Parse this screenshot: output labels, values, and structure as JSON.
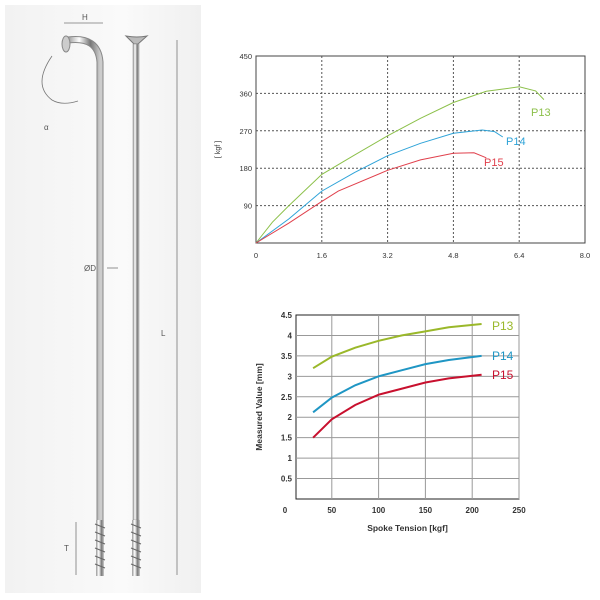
{
  "diagram": {
    "labels": {
      "head": "H",
      "angle": "α",
      "diameter": "ØD",
      "length": "L",
      "thread": "T"
    }
  },
  "chart_data": [
    {
      "type": "line",
      "title": "",
      "xlabel": "",
      "ylabel": "[ kgf ]",
      "xlim": [
        0,
        8
      ],
      "ylim": [
        0,
        450
      ],
      "xticks": [
        "0",
        "1.6",
        "3.2",
        "4.8",
        "6.4",
        "8.0"
      ],
      "yticks": [
        "90",
        "180",
        "270",
        "360",
        "450"
      ],
      "grid": "dashed",
      "series": [
        {
          "name": "P13",
          "color": "#8cc04a",
          "points": [
            [
              0,
              0
            ],
            [
              0.4,
              50
            ],
            [
              0.8,
              90
            ],
            [
              1.6,
              165
            ],
            [
              2.4,
              212
            ],
            [
              3.2,
              258
            ],
            [
              4,
              300
            ],
            [
              4.8,
              338
            ],
            [
              5.6,
              365
            ],
            [
              6.4,
              376
            ],
            [
              6.8,
              366
            ],
            [
              7,
              345
            ]
          ]
        },
        {
          "name": "P14",
          "color": "#2ea3d8",
          "points": [
            [
              0,
              0
            ],
            [
              0.8,
              58
            ],
            [
              1.6,
              125
            ],
            [
              2.4,
              170
            ],
            [
              3.2,
              210
            ],
            [
              4,
              240
            ],
            [
              4.8,
              264
            ],
            [
              5.5,
              272
            ],
            [
              5.8,
              268
            ],
            [
              6,
              255
            ]
          ]
        },
        {
          "name": "P15",
          "color": "#e0404c",
          "points": [
            [
              0,
              0
            ],
            [
              0.8,
              48
            ],
            [
              1.6,
              100
            ],
            [
              2,
              125
            ],
            [
              3.2,
              175
            ],
            [
              4,
              200
            ],
            [
              4.8,
              216
            ],
            [
              5.3,
              217
            ],
            [
              5.6,
              205
            ]
          ]
        }
      ]
    },
    {
      "type": "line",
      "title": "",
      "xlabel": "Spoke Tension [kgf]",
      "ylabel": "Measured Value [mm]",
      "xlim": [
        0,
        250
      ],
      "ylim": [
        0,
        4.5
      ],
      "xticks": [
        "0",
        "50",
        "100",
        "150",
        "200",
        "250"
      ],
      "yticks": [
        "0.5",
        "1",
        "1.5",
        "2",
        "2.5",
        "3",
        "3.5",
        "4",
        "4.5"
      ],
      "grid": "solid",
      "series": [
        {
          "name": "P13",
          "color": "#9ab82a",
          "points": [
            [
              30,
              3.2
            ],
            [
              50,
              3.48
            ],
            [
              75,
              3.7
            ],
            [
              100,
              3.87
            ],
            [
              125,
              4.0
            ],
            [
              150,
              4.1
            ],
            [
              175,
              4.2
            ],
            [
              210,
              4.28
            ]
          ]
        },
        {
          "name": "P14",
          "color": "#1f96c4",
          "points": [
            [
              30,
              2.12
            ],
            [
              50,
              2.48
            ],
            [
              75,
              2.78
            ],
            [
              100,
              3.0
            ],
            [
              125,
              3.15
            ],
            [
              150,
              3.3
            ],
            [
              175,
              3.4
            ],
            [
              210,
              3.5
            ]
          ]
        },
        {
          "name": "P15",
          "color": "#c8102e",
          "points": [
            [
              30,
              1.5
            ],
            [
              50,
              1.95
            ],
            [
              75,
              2.3
            ],
            [
              100,
              2.55
            ],
            [
              125,
              2.7
            ],
            [
              150,
              2.85
            ],
            [
              175,
              2.95
            ],
            [
              210,
              3.04
            ]
          ]
        }
      ]
    }
  ]
}
